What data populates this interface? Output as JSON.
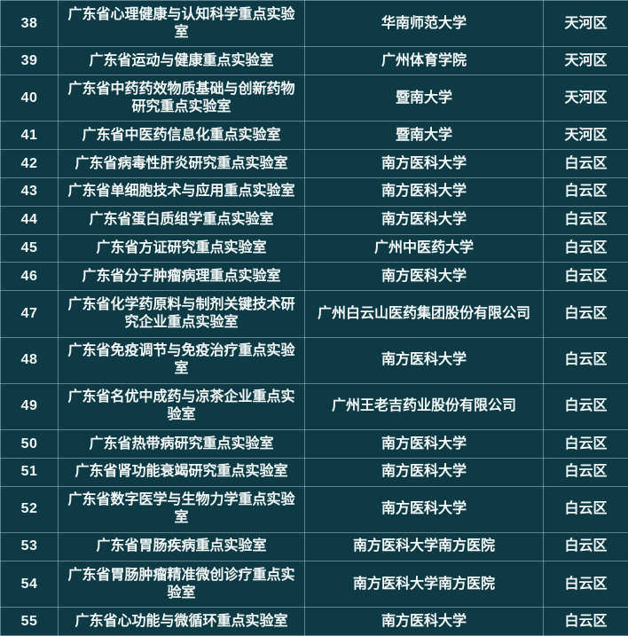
{
  "colors": {
    "background": "#0d3a45",
    "grid_line": "rgba(205,235,235,0.42)",
    "text": "#f4f9f8"
  },
  "table": {
    "rows": [
      {
        "no": "38",
        "lab": "广东省心理健康与认知科学重点实验室",
        "org": "华南师范大学",
        "district": "天河区"
      },
      {
        "no": "39",
        "lab": "广东省运动与健康重点实验室",
        "org": "广州体育学院",
        "district": "天河区"
      },
      {
        "no": "40",
        "lab": "广东省中药药效物质基础与创新药物研究重点实验室",
        "org": "暨南大学",
        "district": "天河区"
      },
      {
        "no": "41",
        "lab": "广东省中医药信息化重点实验室",
        "org": "暨南大学",
        "district": "天河区"
      },
      {
        "no": "42",
        "lab": "广东省病毒性肝炎研究重点实验室",
        "org": "南方医科大学",
        "district": "白云区"
      },
      {
        "no": "43",
        "lab": "广东省单细胞技术与应用重点实验室",
        "org": "南方医科大学",
        "district": "白云区"
      },
      {
        "no": "44",
        "lab": "广东省蛋白质组学重点实验室",
        "org": "南方医科大学",
        "district": "白云区"
      },
      {
        "no": "45",
        "lab": "广东省方证研究重点实验室",
        "org": "广州中医药大学",
        "district": "白云区"
      },
      {
        "no": "46",
        "lab": "广东省分子肿瘤病理重点实验室",
        "org": "南方医科大学",
        "district": "白云区"
      },
      {
        "no": "47",
        "lab": "广东省化学药原料与制剂关键技术研究企业重点实验室",
        "org": "广州白云山医药集团股份有限公司",
        "district": "白云区"
      },
      {
        "no": "48",
        "lab": "广东省免疫调节与免疫治疗重点实验室",
        "org": "南方医科大学",
        "district": "白云区"
      },
      {
        "no": "49",
        "lab": "广东省名优中成药与凉茶企业重点实验室",
        "org": "广州王老吉药业股份有限公司",
        "district": "白云区"
      },
      {
        "no": "50",
        "lab": "广东省热带病研究重点实验室",
        "org": "南方医科大学",
        "district": "白云区"
      },
      {
        "no": "51",
        "lab": "广东省肾功能衰竭研究重点实验室",
        "org": "南方医科大学",
        "district": "白云区"
      },
      {
        "no": "52",
        "lab": "广东省数字医学与生物力学重点实验室",
        "org": "南方医科大学",
        "district": "白云区"
      },
      {
        "no": "53",
        "lab": "广东省胃肠疾病重点实验室",
        "org": "南方医科大学南方医院",
        "district": "白云区"
      },
      {
        "no": "54",
        "lab": "广东省胃肠肿瘤精准微创诊疗重点实验室",
        "org": "南方医科大学南方医院",
        "district": "白云区"
      },
      {
        "no": "55",
        "lab": "广东省心功能与微循环重点实验室",
        "org": "南方医科大学",
        "district": "白云区"
      }
    ]
  }
}
